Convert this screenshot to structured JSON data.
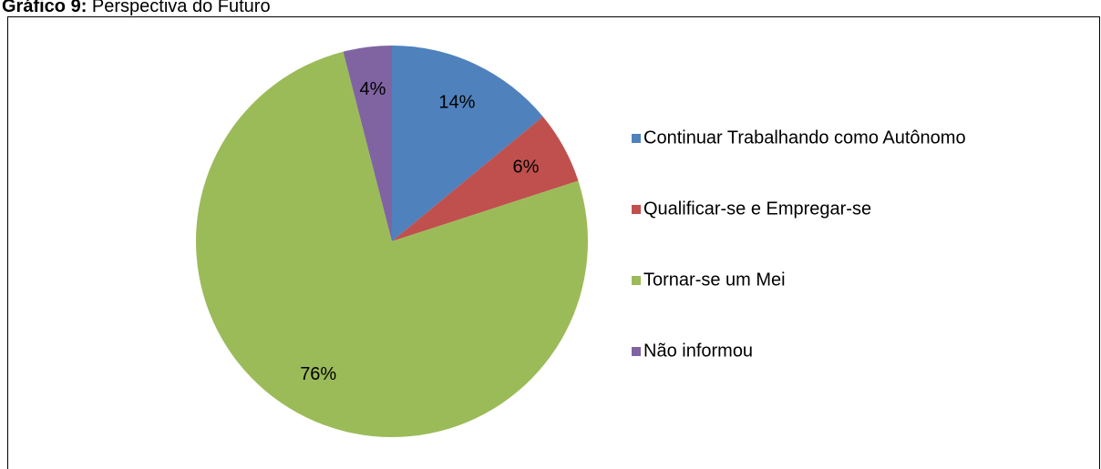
{
  "chart_data": {
    "type": "pie",
    "title": [
      "Gráfico 9:",
      "Perspectiva do Futuro"
    ],
    "categories": [
      "Continuar Trabalhando como Autônomo",
      "Qualificar-se e Empregar-se",
      "Tornar-se um Mei",
      "Não informou"
    ],
    "values": [
      14,
      6,
      76,
      4
    ],
    "value_labels": [
      "14%",
      "6%",
      "76%",
      "4%"
    ],
    "colors": [
      "#4f81bd",
      "#c0504d",
      "#9bbb59",
      "#8064a2"
    ],
    "legend": "right"
  }
}
